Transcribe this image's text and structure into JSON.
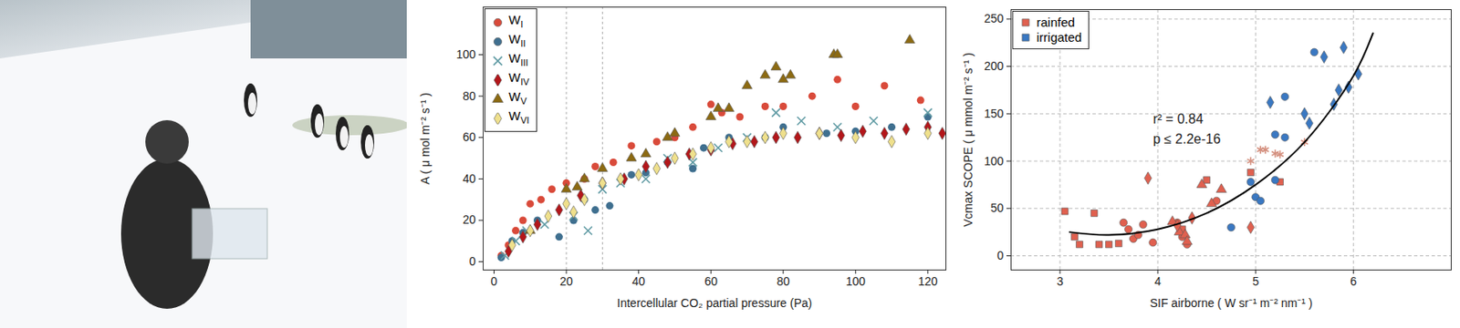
{
  "chart_data": [
    {
      "type": "scatter",
      "xlabel": "Intercellular CO₂ partial pressure (Pa)",
      "ylabel": "A ( μ mol m⁻² s⁻¹ )",
      "xlim": [
        -3,
        125
      ],
      "ylim": [
        -4,
        123
      ],
      "xticks": [
        0,
        20,
        40,
        60,
        80,
        100,
        120
      ],
      "yticks": [
        0,
        20,
        40,
        60,
        80,
        100
      ],
      "vlines": [
        20,
        30
      ],
      "grid": false,
      "legend": "top-left",
      "series": [
        {
          "name": "WI",
          "color": "#d94a3a",
          "marker": "circle",
          "x": [
            2,
            4,
            6,
            8,
            10,
            13,
            16,
            20,
            25,
            28,
            33,
            38,
            45,
            50,
            55,
            60,
            63,
            68,
            75,
            80,
            88,
            95,
            100,
            108,
            118
          ],
          "values": [
            3,
            8,
            15,
            20,
            28,
            30,
            35,
            38,
            40,
            46,
            48,
            56,
            58,
            60,
            65,
            76,
            72,
            70,
            75,
            75,
            80,
            88,
            75,
            85,
            78
          ]
        },
        {
          "name": "WII",
          "color": "#3f6f8f",
          "marker": "circle",
          "x": [
            2,
            5,
            8,
            12,
            18,
            22,
            25,
            28,
            32,
            38,
            42,
            48,
            55,
            58,
            65,
            75,
            80,
            92,
            100,
            110,
            120
          ],
          "values": [
            2,
            10,
            14,
            20,
            12,
            20,
            30,
            25,
            27,
            42,
            43,
            48,
            45,
            55,
            60,
            60,
            65,
            62,
            63,
            65,
            70
          ]
        },
        {
          "name": "WIII",
          "color": "#5f9aa3",
          "marker": "x",
          "x": [
            3,
            6,
            9,
            14,
            22,
            26,
            30,
            35,
            42,
            48,
            55,
            62,
            70,
            78,
            85,
            95,
            105,
            120
          ],
          "values": [
            3,
            10,
            15,
            18,
            22,
            15,
            35,
            38,
            40,
            50,
            48,
            55,
            60,
            72,
            68,
            65,
            68,
            72
          ]
        },
        {
          "name": "WIV",
          "color": "#b3161a",
          "marker": "diamond",
          "x": [
            4,
            8,
            12,
            18,
            24,
            30,
            36,
            42,
            48,
            54,
            60,
            66,
            72,
            78,
            84,
            90,
            96,
            102,
            108,
            114,
            120,
            124
          ],
          "values": [
            5,
            12,
            18,
            25,
            32,
            38,
            40,
            46,
            48,
            52,
            54,
            57,
            58,
            60,
            60,
            62,
            61,
            63,
            62,
            64,
            65,
            62
          ]
        },
        {
          "name": "WV",
          "color": "#8c6a12",
          "marker": "triangle",
          "x": [
            10,
            20,
            23,
            25,
            30,
            38,
            42,
            48,
            50,
            60,
            62,
            65,
            70,
            75,
            78,
            80,
            82,
            94,
            95,
            115
          ],
          "values": [
            15,
            35,
            36,
            40,
            45,
            50,
            52,
            60,
            62,
            70,
            74,
            74,
            85,
            90,
            94,
            88,
            90,
            100,
            100,
            107
          ]
        },
        {
          "name": "WVI",
          "color": "#efe08c",
          "marker": "diamond",
          "x": [
            5,
            10,
            15,
            20,
            22,
            25,
            30,
            35,
            40,
            45,
            50,
            55,
            60,
            65,
            70,
            75,
            80,
            90,
            100,
            110,
            120
          ],
          "values": [
            8,
            15,
            22,
            28,
            24,
            30,
            38,
            40,
            42,
            45,
            50,
            52,
            55,
            58,
            58,
            60,
            62,
            62,
            60,
            58,
            62
          ]
        }
      ]
    },
    {
      "type": "scatter",
      "xlabel": "SIF airborne ( W sr⁻¹ m⁻² nm⁻¹ )",
      "ylabel": "Vcmax SCOPE ( μ mmol m⁻² s⁻¹ )",
      "xlim": [
        2.5,
        7.0
      ],
      "ylim": [
        -15,
        260
      ],
      "xticks": [
        3,
        4,
        5,
        6
      ],
      "yticks": [
        0,
        50,
        100,
        150,
        200,
        250
      ],
      "grid": true,
      "legend": "top-left",
      "annotations": [
        "r² = 0.84",
        "p ≤ 2.2e-16"
      ],
      "fit": {
        "x": [
          3.1,
          3.5,
          4.0,
          4.5,
          5.0,
          5.5,
          6.0,
          6.2
        ],
        "values": [
          25,
          22,
          28,
          45,
          75,
          120,
          190,
          235
        ]
      },
      "series": [
        {
          "name": "rainfed",
          "color": "#e0604f",
          "marker": "square",
          "x": [
            3.05,
            3.15,
            3.2,
            3.35,
            3.4,
            3.5,
            3.6,
            4.25,
            4.5,
            4.95,
            5.25
          ],
          "values": [
            47,
            20,
            12,
            45,
            12,
            12,
            13,
            28,
            80,
            88,
            78
          ]
        },
        {
          "name": "irrigated",
          "color": "#3a78c2",
          "marker": "square",
          "x": [],
          "values": []
        },
        {
          "color": "#e0604f",
          "marker": "circle",
          "x": [
            3.65,
            3.7,
            3.75,
            3.8,
            3.85,
            3.95,
            4.2,
            4.25,
            4.3,
            4.6
          ],
          "values": [
            35,
            28,
            18,
            22,
            33,
            14,
            35,
            20,
            12,
            58
          ]
        },
        {
          "color": "#e0604f",
          "marker": "triangle",
          "x": [
            4.15,
            4.22,
            4.28,
            4.3,
            4.45,
            4.55,
            4.65
          ],
          "values": [
            36,
            25,
            22,
            15,
            75,
            55,
            70
          ]
        },
        {
          "color": "#e0604f",
          "marker": "diamond",
          "x": [
            3.9,
            4.35,
            4.95,
            4.2
          ],
          "values": [
            82,
            40,
            30,
            32
          ]
        },
        {
          "color": "#3a78c2",
          "marker": "circle",
          "x": [
            4.75,
            4.95,
            5.0,
            5.05,
            5.2,
            5.2,
            5.3,
            5.3,
            5.6
          ],
          "values": [
            30,
            78,
            62,
            58,
            80,
            128,
            125,
            168,
            215
          ]
        },
        {
          "color": "#3a78c2",
          "marker": "diamond",
          "x": [
            5.15,
            5.5,
            5.55,
            5.7,
            5.8,
            5.85,
            5.9,
            5.95,
            6.05
          ],
          "values": [
            162,
            150,
            140,
            210,
            160,
            175,
            220,
            178,
            192
          ]
        },
        {
          "color": "#d4907f",
          "marker": "asterisk",
          "x": [
            4.95,
            5.05,
            5.1,
            5.2,
            5.25,
            5.5
          ],
          "values": [
            100,
            112,
            112,
            108,
            107,
            120
          ]
        }
      ]
    }
  ]
}
